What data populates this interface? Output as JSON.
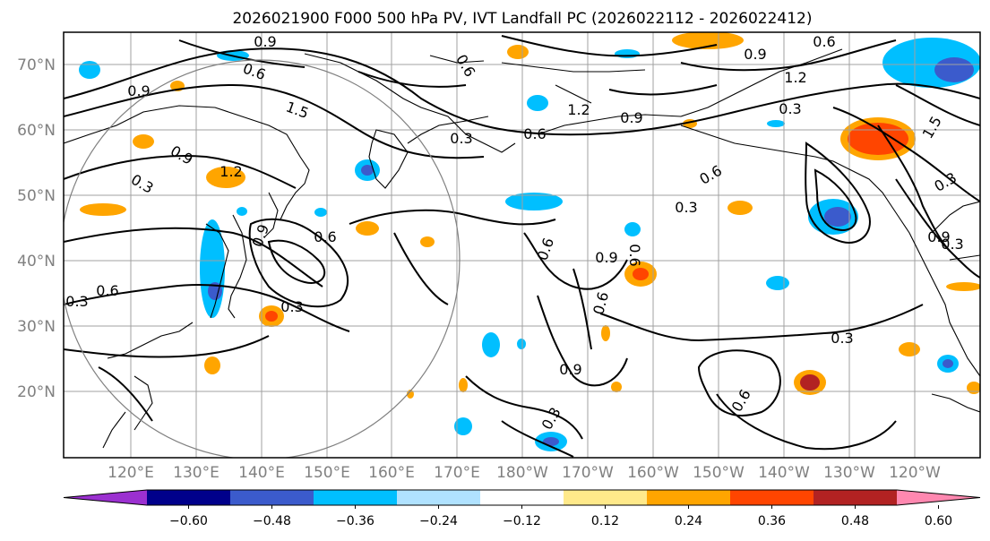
{
  "title": "2026021900 F000 500 hPa PV, IVT Landfall PC (2026022112 - 2026022412)",
  "lat_labels": [
    "70°N",
    "60°N",
    "50°N",
    "40°N",
    "30°N",
    "20°N"
  ],
  "lon_labels": [
    "120°E",
    "130°E",
    "140°E",
    "150°E",
    "160°E",
    "170°E",
    "180°W",
    "170°W",
    "160°W",
    "150°W",
    "140°W",
    "130°W",
    "120°W"
  ],
  "colorbar": {
    "ticks": [
      "−0.60",
      "−0.48",
      "−0.36",
      "−0.24",
      "−0.12",
      "0.12",
      "0.24",
      "0.36",
      "0.48",
      "0.60"
    ],
    "colors": [
      "#9b30d0",
      "#00008b",
      "#3b5bcc",
      "#00bfff",
      "#b0e2ff",
      "#ffffff",
      "#ffe98a",
      "#ffa500",
      "#ff4500",
      "#b22222",
      "#ff88b0"
    ]
  },
  "contour_labels": [
    {
      "text": "0.6"
    },
    {
      "text": "0.9"
    },
    {
      "text": "0.6"
    },
    {
      "text": "0.9"
    },
    {
      "text": "1.5"
    },
    {
      "text": "1.2"
    },
    {
      "text": "0.6"
    },
    {
      "text": "0.9"
    },
    {
      "text": "0.6"
    },
    {
      "text": "1.2"
    },
    {
      "text": "0.3"
    },
    {
      "text": "0.9"
    },
    {
      "text": "0.3"
    },
    {
      "text": "1.2"
    },
    {
      "text": "1.5"
    },
    {
      "text": "0.3"
    },
    {
      "text": "0.6"
    },
    {
      "text": "0.9"
    },
    {
      "text": "0.6"
    },
    {
      "text": "0.3"
    },
    {
      "text": "0.9"
    },
    {
      "text": "0.6"
    },
    {
      "text": "0.6"
    },
    {
      "text": "0.3"
    },
    {
      "text": "0.3"
    },
    {
      "text": "0.6"
    },
    {
      "text": "0.9"
    },
    {
      "text": "0.3"
    },
    {
      "text": "0.3"
    },
    {
      "text": "0.6"
    },
    {
      "text": "0.6"
    },
    {
      "text": "0.9"
    },
    {
      "text": "0.3"
    },
    {
      "text": "0.9"
    },
    {
      "text": "0.3"
    }
  ]
}
